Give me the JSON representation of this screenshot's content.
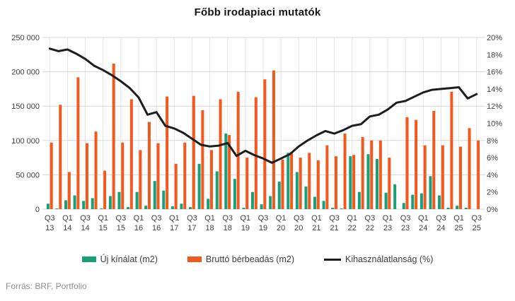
{
  "title": "Főbb irodapiaci mutatók",
  "source": "Forrás: BRF, Portfolio",
  "legend": [
    {
      "label": "Új kínálat (m2)",
      "type": "bar",
      "color": "#18A07A"
    },
    {
      "label": "Bruttó bérbeadás (m2)",
      "type": "bar",
      "color": "#F3591D"
    },
    {
      "label": "Kihasználatlanság (%)",
      "type": "line",
      "color": "#1D1D1B"
    }
  ],
  "chart_data": {
    "type": "bar+line combo",
    "title": "Főbb irodapiaci mutatók",
    "grid": true,
    "x_tick_every": 2,
    "categories": [
      "Q3 13",
      "Q4 13",
      "Q1 14",
      "Q2 14",
      "Q3 14",
      "Q4 14",
      "Q1 15",
      "Q2 15",
      "Q3 15",
      "Q4 15",
      "Q1 16",
      "Q2 16",
      "Q3 16",
      "Q4 16",
      "Q1 17",
      "Q2 17",
      "Q3 17",
      "Q4 17",
      "Q1 18",
      "Q2 18",
      "Q3 18",
      "Q4 18",
      "Q1 19",
      "Q2 19",
      "Q3 19",
      "Q4 19",
      "Q1 20",
      "Q2 20",
      "Q3 20",
      "Q4 20",
      "Q1 21",
      "Q2 21",
      "Q3 21",
      "Q4 21",
      "Q1 22",
      "Q2 22",
      "Q3 22",
      "Q4 22",
      "Q1 23",
      "Q2 23",
      "Q3 23",
      "Q4 23",
      "Q1 24",
      "Q2 24",
      "Q3 24",
      "Q4 24",
      "Q1 25",
      "Q2 25",
      "Q3 25"
    ],
    "left_axis": {
      "min": 0,
      "max": 250000,
      "step": 50000,
      "format": "space-thousands"
    },
    "right_axis": {
      "min": 0,
      "max": 20,
      "step": 2,
      "suffix": "%"
    },
    "series": [
      {
        "name": "Új kínálat (m2)",
        "type": "bar",
        "axis": "left",
        "color": "#18A07A",
        "values": [
          8000,
          1000,
          13000,
          20000,
          12000,
          16000,
          1000,
          19000,
          25000,
          3000,
          25000,
          5000,
          41000,
          27000,
          4000,
          8000,
          3000,
          66000,
          15000,
          55000,
          110000,
          44000,
          2000,
          25000,
          7000,
          19000,
          40000,
          82000,
          54000,
          33000,
          18000,
          12000,
          2000,
          1000,
          77000,
          25000,
          80000,
          73000,
          24000,
          36000,
          9000,
          21000,
          23000,
          48000,
          20000,
          2000,
          5000,
          2000,
          0
        ]
      },
      {
        "name": "Bruttó bérbeadás (m2)",
        "type": "bar",
        "axis": "left",
        "color": "#F3591D",
        "values": [
          97000,
          152000,
          54000,
          192000,
          96000,
          113000,
          56000,
          212000,
          97000,
          160000,
          86000,
          127000,
          96000,
          164000,
          66000,
          97000,
          165000,
          144000,
          86000,
          160000,
          108000,
          171000,
          75000,
          163000,
          189000,
          202000,
          72000,
          83000,
          75000,
          82000,
          71000,
          93000,
          77000,
          110000,
          79000,
          105000,
          100000,
          100000,
          75000,
          0,
          134000,
          130000,
          93000,
          143000,
          93000,
          171000,
          91000,
          118000,
          100000
        ]
      },
      {
        "name": "Kihasználatlanság (%)",
        "type": "line",
        "axis": "right",
        "color": "#1D1D1B",
        "values": [
          18.7,
          18.4,
          18.6,
          18.1,
          17.5,
          16.7,
          16.2,
          15.6,
          14.9,
          14.1,
          13.0,
          11.0,
          11.3,
          9.7,
          9.4,
          8.9,
          8.2,
          7.5,
          7.3,
          7.4,
          7.7,
          6.2,
          6.8,
          6.3,
          5.9,
          5.4,
          5.9,
          6.4,
          7.3,
          8.0,
          8.6,
          9.1,
          8.8,
          9.2,
          9.7,
          9.9,
          10.8,
          11.0,
          11.6,
          12.4,
          12.6,
          13.1,
          13.6,
          13.9,
          14.0,
          14.1,
          14.2,
          12.9,
          13.4
        ]
      }
    ]
  }
}
